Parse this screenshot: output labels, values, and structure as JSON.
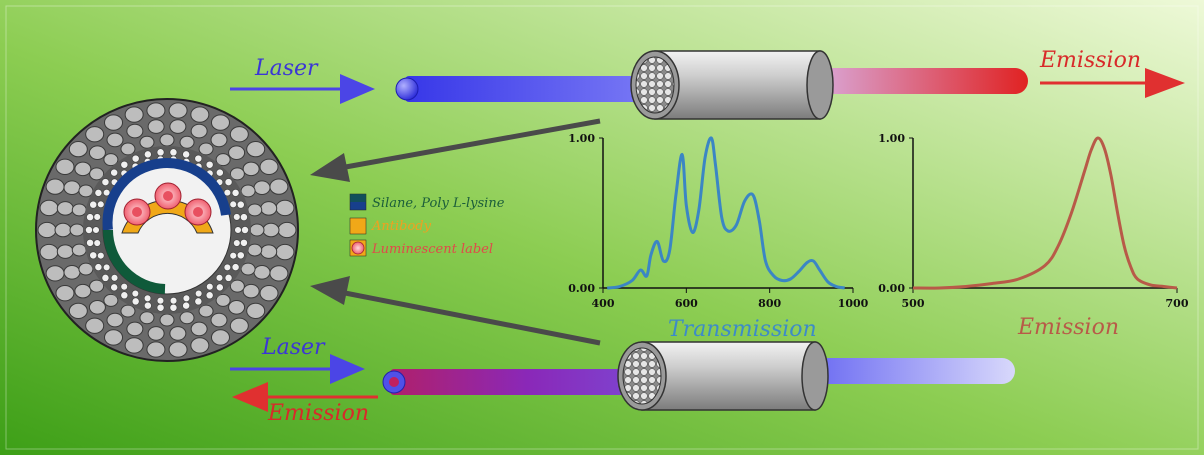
{
  "colors": {
    "bg_left": "#3fa41a",
    "bg_right": "#e9f7cf",
    "laser": "#3f3fe0",
    "emission": "#dd2b2b",
    "transmission_curve": "#3b86c4",
    "emission_curve": "#b85a48",
    "arrow_dark": "#555555",
    "silane": "#123a8a",
    "antibody": "#f0a818",
    "label_cell": "#f06070"
  },
  "labels": {
    "laser_top": "Laser",
    "emission_top": "Emission",
    "laser_bottom": "Laser",
    "emission_bottom": "Emission",
    "transmission_title": "Transmission",
    "emission_title": "Emission"
  },
  "legend": [
    {
      "text": "Silane, Poly L-lysine",
      "color": "#1b5e3a",
      "swatch": "silane"
    },
    {
      "text": "Antibody",
      "color": "#f0a020",
      "swatch": "antibody"
    },
    {
      "text": "Luminescent label",
      "color": "#e04a4a",
      "swatch": "label"
    }
  ],
  "chart_data": [
    {
      "type": "line",
      "title": "Transmission",
      "x_ticks": [
        "400",
        "600",
        "800",
        "1000"
      ],
      "y_ticks": [
        "0.00",
        "1.00"
      ],
      "xlim": [
        400,
        1000
      ],
      "ylim": [
        0,
        1
      ],
      "series": [
        {
          "x": [
            410,
            440,
            470,
            490,
            505,
            515,
            530,
            545,
            560,
            575,
            590,
            600,
            615,
            630,
            645,
            660,
            670,
            685,
            700,
            720,
            740,
            760,
            775,
            790,
            810,
            830,
            850,
            870,
            890,
            905,
            920,
            940,
            960,
            980
          ],
          "y": [
            0.0,
            0.01,
            0.05,
            0.12,
            0.08,
            0.22,
            0.31,
            0.18,
            0.25,
            0.62,
            0.89,
            0.55,
            0.37,
            0.52,
            0.87,
            1.0,
            0.82,
            0.47,
            0.38,
            0.42,
            0.58,
            0.62,
            0.45,
            0.18,
            0.08,
            0.05,
            0.06,
            0.11,
            0.17,
            0.18,
            0.12,
            0.04,
            0.01,
            0.0
          ]
        }
      ]
    },
    {
      "type": "line",
      "title": "Emission",
      "x_ticks": [
        "500",
        "700"
      ],
      "y_ticks": [
        "0.00",
        "1.00"
      ],
      "xlim": [
        500,
        700
      ],
      "ylim": [
        0,
        1
      ],
      "series": [
        {
          "x": [
            500,
            520,
            540,
            560,
            580,
            600,
            610,
            620,
            630,
            635,
            640,
            645,
            650,
            655,
            660,
            665,
            670,
            680,
            690,
            700
          ],
          "y": [
            0.0,
            0.0,
            0.01,
            0.03,
            0.06,
            0.15,
            0.28,
            0.5,
            0.78,
            0.92,
            1.0,
            0.93,
            0.75,
            0.5,
            0.28,
            0.14,
            0.06,
            0.02,
            0.01,
            0.0
          ]
        }
      ]
    }
  ]
}
